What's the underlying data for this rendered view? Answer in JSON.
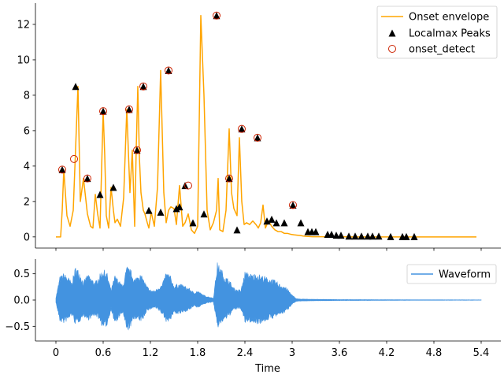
{
  "chart_data": [
    {
      "type": "line",
      "title": "",
      "xlabel": "",
      "ylabel": "",
      "xlim": [
        -0.26,
        5.65
      ],
      "ylim": [
        -0.63,
        13.2
      ],
      "xticks": [
        0,
        0.6,
        1.2,
        1.8,
        2.4,
        3.0,
        3.6,
        4.2,
        4.8,
        5.4
      ],
      "yticks": [
        0,
        2,
        4,
        6,
        8,
        10,
        12
      ],
      "ytick_labels": [
        "0",
        "2",
        "4",
        "6",
        "8",
        "10",
        "12"
      ],
      "legend_position": "top-right",
      "series": [
        {
          "name": "Onset envelope",
          "kind": "line",
          "color": "#ffa500",
          "x": [
            0,
            0.06,
            0.08,
            0.1,
            0.14,
            0.18,
            0.22,
            0.25,
            0.28,
            0.31,
            0.35,
            0.4,
            0.44,
            0.47,
            0.5,
            0.53,
            0.56,
            0.6,
            0.62,
            0.64,
            0.67,
            0.7,
            0.73,
            0.75,
            0.78,
            0.82,
            0.86,
            0.9,
            0.94,
            0.97,
            1.0,
            1.02,
            1.04,
            1.06,
            1.08,
            1.11,
            1.13,
            1.16,
            1.18,
            1.21,
            1.25,
            1.29,
            1.33,
            1.37,
            1.4,
            1.43,
            1.46,
            1.5,
            1.53,
            1.57,
            1.61,
            1.64,
            1.68,
            1.72,
            1.76,
            1.8,
            1.84,
            1.88,
            1.92,
            1.96,
            2.0,
            2.04,
            2.06,
            2.08,
            2.12,
            2.16,
            2.2,
            2.23,
            2.26,
            2.3,
            2.33,
            2.36,
            2.39,
            2.42,
            2.46,
            2.5,
            2.54,
            2.57,
            2.6,
            2.63,
            2.66,
            2.7,
            2.74,
            2.78,
            2.82,
            2.86,
            2.9,
            2.94,
            2.98,
            3.02,
            3.06,
            3.1,
            3.14,
            3.18,
            3.22,
            3.26,
            3.3,
            3.4,
            3.5,
            3.6,
            3.8,
            4.0,
            4.2,
            4.4,
            4.8,
            5.34
          ],
          "y": [
            0,
            0,
            1.5,
            3.8,
            1.2,
            0.6,
            1.5,
            5.0,
            8.5,
            2.0,
            3.3,
            1.3,
            0.6,
            0.5,
            2.4,
            1.3,
            0.5,
            7.1,
            4.6,
            1.2,
            0.5,
            2.8,
            1.5,
            0.8,
            1.0,
            0.6,
            2.2,
            7.2,
            2.5,
            4.9,
            0.6,
            5.0,
            8.5,
            4.5,
            2.5,
            1.5,
            1.3,
            0.8,
            0.5,
            1.4,
            0.6,
            2.8,
            9.4,
            2.5,
            0.8,
            1.5,
            1.7,
            1.6,
            0.7,
            2.9,
            0.6,
            0.8,
            1.3,
            0.4,
            0.2,
            0.6,
            12.5,
            8.0,
            1.5,
            0.4,
            0.8,
            1.5,
            3.3,
            0.4,
            0.3,
            1.5,
            6.1,
            2.5,
            1.6,
            1.2,
            5.6,
            2.0,
            0.7,
            0.8,
            0.7,
            0.9,
            0.7,
            0.5,
            0.8,
            1.8,
            0.5,
            0.9,
            0.6,
            0.4,
            0.3,
            0.3,
            0.2,
            0.2,
            0.15,
            0.12,
            0.1,
            0.08,
            0.05,
            0.03,
            0.02,
            0.01,
            0.01,
            0.01,
            0.01,
            0.01,
            0.0,
            0.0,
            0.0,
            0.0,
            0.0,
            0.0
          ]
        },
        {
          "name": "Localmax Peaks",
          "kind": "scatter",
          "marker": "triangle",
          "color": "#000000",
          "x": [
            0.08,
            0.25,
            0.4,
            0.56,
            0.6,
            0.73,
            0.93,
            1.03,
            1.11,
            1.18,
            1.33,
            1.43,
            1.53,
            1.57,
            1.64,
            1.74,
            1.88,
            2.04,
            2.2,
            2.3,
            2.36,
            2.56,
            2.68,
            2.74,
            2.8,
            2.9,
            3.01,
            3.11,
            3.2,
            3.25,
            3.3,
            3.45,
            3.5,
            3.56,
            3.62,
            3.72,
            3.8,
            3.88,
            3.96,
            4.02,
            4.1,
            4.25,
            4.4,
            4.45,
            4.55
          ],
          "y": [
            3.8,
            8.5,
            3.3,
            2.4,
            7.1,
            2.8,
            7.2,
            4.9,
            8.5,
            1.5,
            1.4,
            9.4,
            1.6,
            1.7,
            2.9,
            0.8,
            1.3,
            12.5,
            3.3,
            0.4,
            6.1,
            5.6,
            0.9,
            1.0,
            0.8,
            0.8,
            1.8,
            0.8,
            0.3,
            0.3,
            0.3,
            0.15,
            0.15,
            0.1,
            0.1,
            0.05,
            0.05,
            0.05,
            0.05,
            0.05,
            0.05,
            0.02,
            0.02,
            0.02,
            0.02
          ]
        },
        {
          "name": "onset_detect",
          "kind": "scatter",
          "marker": "circle-open",
          "color": "#cc2200",
          "x": [
            0.08,
            0.23,
            0.4,
            0.6,
            0.93,
            1.03,
            1.11,
            1.43,
            1.68,
            2.04,
            2.2,
            2.36,
            2.56,
            3.01
          ],
          "y": [
            3.8,
            4.4,
            3.3,
            7.1,
            7.2,
            4.9,
            8.5,
            9.4,
            2.9,
            12.5,
            3.3,
            6.1,
            5.6,
            1.8
          ]
        }
      ]
    },
    {
      "type": "area",
      "title": "",
      "xlabel": "Time",
      "ylabel": "",
      "xlim": [
        -0.26,
        5.65
      ],
      "ylim": [
        -0.78,
        0.78
      ],
      "xticks": [
        0,
        0.6,
        1.2,
        1.8,
        2.4,
        3.0,
        3.6,
        4.2,
        4.8,
        5.4
      ],
      "xtick_labels": [
        "0",
        "0.6",
        "1.2",
        "1.8",
        "2.4",
        "3",
        "3.6",
        "4.2",
        "4.8",
        "5.4"
      ],
      "yticks": [
        -0.5,
        0.0,
        0.5
      ],
      "ytick_labels": [
        "−0.5",
        "0.0",
        "0.5"
      ],
      "legend_position": "top-right",
      "series": [
        {
          "name": "Waveform",
          "color": "#4393e0",
          "x": [
            0,
            0.05,
            0.1,
            0.15,
            0.2,
            0.25,
            0.3,
            0.35,
            0.4,
            0.45,
            0.5,
            0.55,
            0.6,
            0.65,
            0.7,
            0.75,
            0.8,
            0.85,
            0.9,
            0.95,
            1.0,
            1.05,
            1.1,
            1.15,
            1.2,
            1.25,
            1.3,
            1.35,
            1.4,
            1.45,
            1.5,
            1.55,
            1.6,
            1.65,
            1.7,
            1.75,
            1.8,
            1.85,
            1.9,
            1.95,
            2.0,
            2.05,
            2.1,
            2.15,
            2.2,
            2.25,
            2.3,
            2.35,
            2.4,
            2.45,
            2.5,
            2.55,
            2.6,
            2.65,
            2.7,
            2.75,
            2.8,
            2.85,
            2.9,
            2.95,
            3.0,
            3.05,
            3.1,
            3.3,
            3.6,
            4.0,
            4.5,
            5.0,
            5.4
          ],
          "upper": [
            0.05,
            0.45,
            0.52,
            0.45,
            0.35,
            0.65,
            0.55,
            0.35,
            0.5,
            0.42,
            0.35,
            0.48,
            0.6,
            0.52,
            0.2,
            0.48,
            0.38,
            0.28,
            0.65,
            0.58,
            0.4,
            0.52,
            0.45,
            0.28,
            0.2,
            0.18,
            0.25,
            0.3,
            0.55,
            0.48,
            0.28,
            0.32,
            0.3,
            0.26,
            0.22,
            0.15,
            0.18,
            0.12,
            0.08,
            0.06,
            0.04,
            0.72,
            0.6,
            0.45,
            0.4,
            0.25,
            0.2,
            0.2,
            0.55,
            0.52,
            0.5,
            0.52,
            0.48,
            0.46,
            0.42,
            0.4,
            0.36,
            0.3,
            0.28,
            0.2,
            0.1,
            0.03,
            0.02,
            0.015,
            0.01,
            0.008,
            0.006,
            0.005,
            0.004
          ],
          "lower": [
            -0.05,
            -0.42,
            -0.45,
            -0.4,
            -0.3,
            -0.48,
            -0.42,
            -0.3,
            -0.4,
            -0.35,
            -0.3,
            -0.38,
            -0.55,
            -0.5,
            -0.18,
            -0.48,
            -0.35,
            -0.25,
            -0.62,
            -0.52,
            -0.35,
            -0.42,
            -0.4,
            -0.22,
            -0.18,
            -0.15,
            -0.2,
            -0.28,
            -0.42,
            -0.4,
            -0.25,
            -0.28,
            -0.26,
            -0.22,
            -0.2,
            -0.12,
            -0.15,
            -0.1,
            -0.07,
            -0.05,
            -0.04,
            -0.55,
            -0.45,
            -0.38,
            -0.32,
            -0.2,
            -0.18,
            -0.18,
            -0.45,
            -0.42,
            -0.45,
            -0.46,
            -0.45,
            -0.42,
            -0.38,
            -0.36,
            -0.32,
            -0.28,
            -0.25,
            -0.18,
            -0.08,
            -0.03,
            -0.02,
            -0.015,
            -0.01,
            -0.008,
            -0.006,
            -0.005,
            -0.004
          ]
        }
      ]
    }
  ]
}
